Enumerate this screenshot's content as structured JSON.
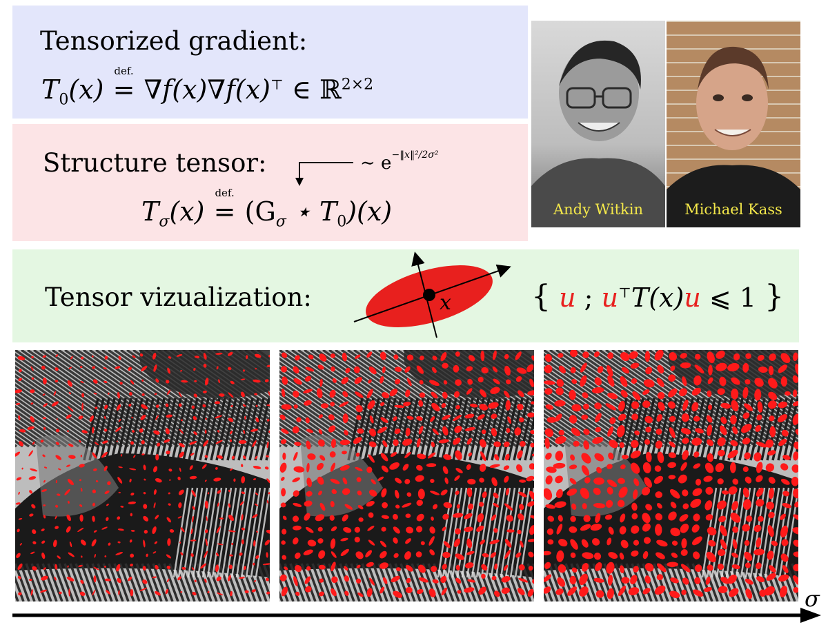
{
  "gradient": {
    "heading": "Tensorized gradient:",
    "lhs": "T",
    "lhs_sub": "0",
    "arg": "(x)",
    "def_label": "def.",
    "rhs": "∇f(x)∇f(x)",
    "transpose": "⊤",
    "in": "∈ ℝ",
    "dims": "2×2"
  },
  "structure": {
    "heading": "Structure tensor:",
    "kernel_prefix": "∼ e",
    "kernel_exponent": "−‖x‖²/2σ²",
    "lhs": "T",
    "lhs_sub": "σ",
    "arg": "(x)",
    "def_label": "def.",
    "rhs": "(G",
    "rhs_sub": "σ",
    "rhs_tail": "⋆ T",
    "rhs_tail_sub": "0",
    "rhs_end": ")(x)"
  },
  "visualization": {
    "heading": "Tensor vizualization:",
    "point_label": "x",
    "set_open": "{",
    "var_u": "u",
    "separator": ";",
    "condition_mid": "T(x)",
    "condition_end": "⩽ 1",
    "set_close": "}",
    "ellipse_color": "#e8201e"
  },
  "people": [
    {
      "name": "Andy Witkin"
    },
    {
      "name": "Michael Kass"
    }
  ],
  "axis": {
    "label": "σ"
  }
}
